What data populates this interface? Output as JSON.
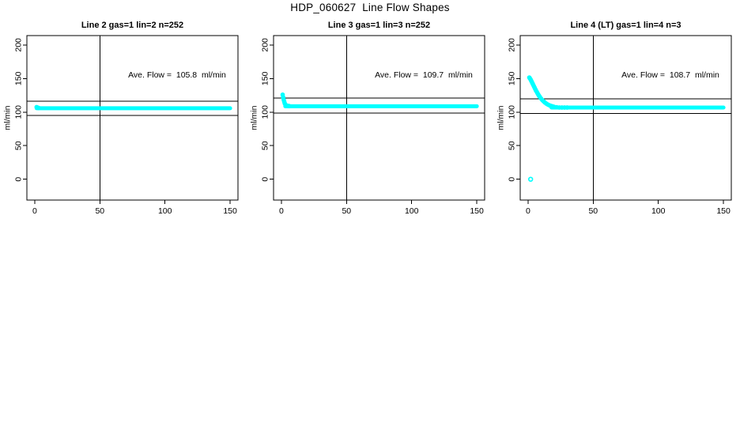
{
  "page_title": "HDP_060627  Line Flow Shapes",
  "colors": {
    "data_marker": "#00FFFF",
    "axis": "#000000",
    "background": "#FFFFFF"
  },
  "chart_data": [
    {
      "type": "scatter",
      "title": "Line 2 gas=1 lin=2 n=252",
      "n": 252,
      "annotation": "Ave. Flow =  105.8  ml/min",
      "ave_flow_ml_min": 105.8,
      "xlabel": "",
      "ylabel": "ml/min",
      "x_ticks": [
        0,
        50,
        100,
        150
      ],
      "y_ticks": [
        0,
        50,
        100,
        150,
        200
      ],
      "xlim": [
        -6,
        156
      ],
      "ylim": [
        -31,
        214
      ],
      "grid": false,
      "legend": "none",
      "marker": "open-circle",
      "marker_color": "#00FFFF",
      "ref_line_x": 50,
      "ref_lines_y": [
        116.4,
        95.2
      ],
      "flat_band": {
        "x_start": 1.5,
        "x_end": 150,
        "y": 105.8
      },
      "transient_points": [
        [
          1.5,
          107.5
        ],
        [
          2,
          106.8
        ],
        [
          3,
          106.2
        ]
      ],
      "outlier_points": []
    },
    {
      "type": "scatter",
      "title": "Line 3 gas=1 lin=3 n=252",
      "n": 252,
      "annotation": "Ave. Flow =  109.7  ml/min",
      "ave_flow_ml_min": 109.7,
      "xlabel": "",
      "ylabel": "ml/min",
      "x_ticks": [
        0,
        50,
        100,
        150
      ],
      "y_ticks": [
        0,
        50,
        100,
        150,
        200
      ],
      "xlim": [
        -6,
        156
      ],
      "ylim": [
        -31,
        214
      ],
      "grid": false,
      "legend": "none",
      "marker": "open-circle",
      "marker_color": "#00FFFF",
      "ref_line_x": 50,
      "ref_lines_y": [
        120.7,
        98.7
      ],
      "flat_band": {
        "x_start": 3,
        "x_end": 150,
        "y": 108.8
      },
      "transient_points": [
        [
          1,
          126
        ],
        [
          1.4,
          122
        ],
        [
          1.8,
          118.5
        ],
        [
          2.2,
          115.5
        ],
        [
          2.6,
          113
        ],
        [
          3,
          111.5
        ],
        [
          3.5,
          110.4
        ],
        [
          4,
          109.8
        ],
        [
          5,
          109.3
        ],
        [
          6,
          109
        ]
      ],
      "outlier_points": []
    },
    {
      "type": "scatter",
      "title": "Line 4 (LT) gas=1 lin=4 n=3",
      "n": 3,
      "annotation": "Ave. Flow =  108.7  ml/min",
      "ave_flow_ml_min": 108.7,
      "xlabel": "",
      "ylabel": "ml/min",
      "x_ticks": [
        0,
        50,
        100,
        150
      ],
      "y_ticks": [
        0,
        50,
        100,
        150,
        200
      ],
      "xlim": [
        -6,
        156
      ],
      "ylim": [
        -31,
        214
      ],
      "grid": false,
      "legend": "none",
      "marker": "open-circle",
      "marker_color": "#00FFFF",
      "ref_line_x": 50,
      "ref_lines_y": [
        119.6,
        97.8
      ],
      "flat_band": {
        "x_start": 18,
        "x_end": 150,
        "y": 106.8
      },
      "transient_points": [
        [
          1,
          151.5
        ],
        [
          1.5,
          150
        ],
        [
          2,
          148.5
        ],
        [
          2.5,
          146.5
        ],
        [
          3,
          144.5
        ],
        [
          3.5,
          142.5
        ],
        [
          4,
          140.5
        ],
        [
          4.5,
          138.5
        ],
        [
          5,
          136.5
        ],
        [
          5.5,
          134.5
        ],
        [
          6,
          132.5
        ],
        [
          6.5,
          130.8
        ],
        [
          7,
          129
        ],
        [
          7.5,
          127.3
        ],
        [
          8,
          125.7
        ],
        [
          8.5,
          124.2
        ],
        [
          9,
          122.8
        ],
        [
          10,
          120.2
        ],
        [
          11,
          117.9
        ],
        [
          12,
          115.9
        ],
        [
          13,
          114.2
        ],
        [
          14,
          112.7
        ],
        [
          15,
          111.5
        ],
        [
          16,
          110.5
        ],
        [
          17,
          109.7
        ],
        [
          18,
          109
        ],
        [
          19,
          108.4
        ],
        [
          20,
          107.9
        ],
        [
          22,
          107.3
        ],
        [
          24,
          106.9
        ],
        [
          26,
          106.8
        ],
        [
          28,
          106.8
        ],
        [
          30,
          106.8
        ]
      ],
      "outlier_points": [
        [
          2,
          0
        ]
      ]
    }
  ]
}
